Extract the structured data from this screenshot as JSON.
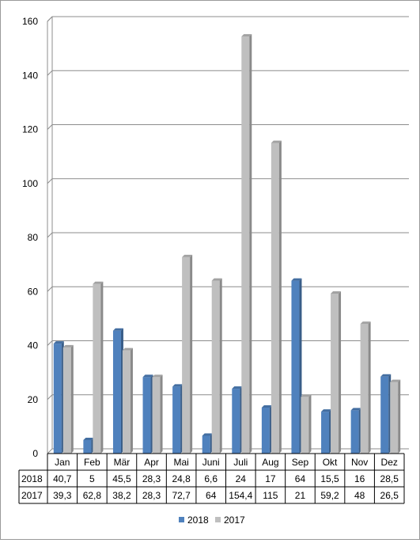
{
  "chart_data": {
    "type": "bar",
    "categories": [
      "Jan",
      "Feb",
      "Mär",
      "Apr",
      "Mai",
      "Juni",
      "Juli",
      "Aug",
      "Sep",
      "Okt",
      "Nov",
      "Dez"
    ],
    "series": [
      {
        "name": "2018",
        "color": "#4f81bd",
        "values": [
          40.7,
          5,
          45.5,
          28.3,
          24.8,
          6.6,
          24,
          17,
          64,
          15.5,
          16,
          28.5
        ],
        "labels": [
          "40,7",
          "5",
          "45,5",
          "28,3",
          "24,8",
          "6,6",
          "24",
          "17",
          "64",
          "15,5",
          "16",
          "28,5"
        ]
      },
      {
        "name": "2017",
        "color": "#bfbfbf",
        "values": [
          39.3,
          62.8,
          38.2,
          28.3,
          72.7,
          64,
          154.4,
          115,
          21,
          59.2,
          48,
          26.5
        ],
        "labels": [
          "39,3",
          "62,8",
          "38,2",
          "28,3",
          "72,7",
          "64",
          "154,4",
          "115",
          "21",
          "59,2",
          "48",
          "26,5"
        ]
      }
    ],
    "yticks": [
      "0",
      "20",
      "40",
      "60",
      "80",
      "100",
      "120",
      "140",
      "160"
    ],
    "ylim": [
      0,
      160
    ],
    "grid": true,
    "legend_position": "bottom",
    "data_table": true
  }
}
